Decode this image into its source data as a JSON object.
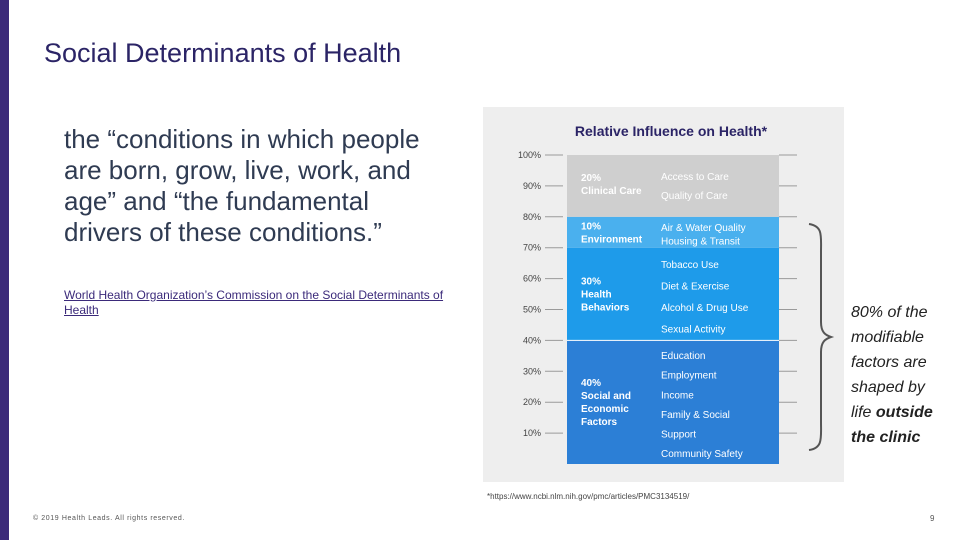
{
  "slide": {
    "title": "Social Determinants of Health",
    "quote": "the “conditions in which people are born, grow, live, work, and age” and “the fundamental drivers of these conditions.”",
    "source_link": "World Health Organization’s Commission on the Social Determinants of Health",
    "footnote": "*https://www.ncbi.nlm.nih.gov/pmc/articles/PMC3134519/",
    "copyright": "© 2019 Health Leads. All rights reserved.",
    "page_number": "9"
  },
  "callout": {
    "line1": "80% of the",
    "line2": "modifiable",
    "line3": "factors are",
    "line4": "shaped by",
    "line5_a": "life ",
    "line5_b": "outside",
    "line6": "the clinic"
  },
  "chart_data": {
    "type": "bar",
    "title": "Relative Influence on Health*",
    "ylim": [
      0,
      100
    ],
    "yticks": [
      "10%",
      "20%",
      "30%",
      "40%",
      "50%",
      "60%",
      "70%",
      "80%",
      "90%",
      "100%"
    ],
    "segments": [
      {
        "value": 40,
        "label_pct": "40%",
        "label_name": [
          "Social and",
          "Economic",
          "Factors"
        ],
        "color": "#2c7fd6",
        "items": [
          "Education",
          "Employment",
          "Income",
          "Family & Social",
          "Support",
          "Community Safety"
        ]
      },
      {
        "value": 30,
        "label_pct": "30%",
        "label_name": [
          "Health",
          "Behaviors"
        ],
        "color": "#1e9bea",
        "items": [
          "Tobacco Use",
          "Diet & Exercise",
          "Alcohol & Drug Use",
          "Sexual Activity"
        ]
      },
      {
        "value": 10,
        "label_pct": "10%",
        "label_name": [
          "Environment"
        ],
        "color": "#4ab0ee",
        "items": [
          "Air & Water Quality",
          "Housing & Transit"
        ]
      },
      {
        "value": 20,
        "label_pct": "20%",
        "label_name": [
          "Clinical Care"
        ],
        "color": "#cfcfcf",
        "items": [
          "Access to Care",
          "Quality of Care"
        ]
      }
    ]
  },
  "colors": {
    "accent": "#3b2a7a",
    "title": "#2b2466"
  }
}
